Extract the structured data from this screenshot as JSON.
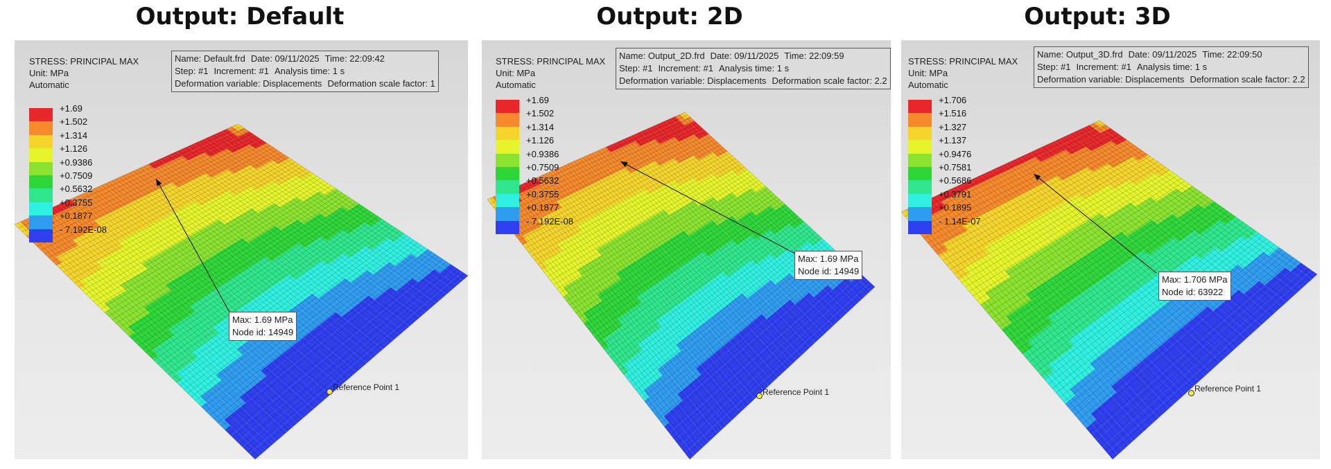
{
  "panels": [
    {
      "title": "Output: Default",
      "legend_header": [
        "STRESS: PRINCIPAL MAX",
        "Unit: MPa",
        "Automatic"
      ],
      "legend_values": [
        "+1.69",
        "+1.502",
        "+1.314",
        "+1.126",
        "+0.9386",
        "+0.7509",
        "+0.5632",
        "+0.3755",
        "+0.1877",
        "- 7.192E-08"
      ],
      "info": {
        "name": "Name: Default.frd",
        "date": "Date: 09/11/2025",
        "time": "Time: 22:09:42",
        "step": "Step: #1",
        "increment": "Increment: #1",
        "analysis_time": "Analysis time: 1 s",
        "deformation_variable": "Deformation variable: Displacements",
        "deformation_scale": "Deformation scale factor: 1"
      },
      "max_label": "Max: 1.69 MPa",
      "node_label": "Node id: 14949",
      "reference_label": "Reference Point 1"
    },
    {
      "title": "Output: 2D",
      "legend_header": [
        "STRESS: PRINCIPAL MAX",
        "Unit: MPa",
        "Automatic"
      ],
      "legend_values": [
        "+1.69",
        "+1.502",
        "+1.314",
        "+1.126",
        "+0.9386",
        "+0.7509",
        "+0.5632",
        "+0.3755",
        "+0.1877",
        "- 7.192E-08"
      ],
      "info": {
        "name": "Name: Output_2D.frd",
        "date": "Date: 09/11/2025",
        "time": "Time: 22:09:59",
        "step": "Step: #1",
        "increment": "Increment: #1",
        "analysis_time": "Analysis time: 1 s",
        "deformation_variable": "Deformation variable: Displacements",
        "deformation_scale": "Deformation scale factor: 2.2"
      },
      "max_label": "Max: 1.69 MPa",
      "node_label": "Node id: 14949",
      "reference_label": "Reference Point 1"
    },
    {
      "title": "Output: 3D",
      "legend_header": [
        "STRESS: PRINCIPAL MAX",
        "Unit: MPa",
        "Automatic"
      ],
      "legend_values": [
        "+1.706",
        "+1.516",
        "+1.327",
        "+1.137",
        "+0.9476",
        "+0.7581",
        "+0.5686",
        "+0.3791",
        "+0.1895",
        "- 1.14E-07"
      ],
      "info": {
        "name": "Name: Output_3D.frd",
        "date": "Date: 09/11/2025",
        "time": "Time: 22:09:50",
        "step": "Step: #1",
        "increment": "Increment: #1",
        "analysis_time": "Analysis time: 1 s",
        "deformation_variable": "Deformation variable: Displacements",
        "deformation_scale": "Deformation scale factor: 2.2"
      },
      "max_label": "Max: 1.706 MPa",
      "node_label": "Node id: 63922",
      "reference_label": "Reference Point 1"
    }
  ],
  "colors": {
    "scale": [
      "#e8272b",
      "#f5892b",
      "#f5d52b",
      "#e6f52b",
      "#8be22f",
      "#2fd63a",
      "#2fe68c",
      "#2ff0e0",
      "#2f9cf0",
      "#2f3ff0"
    ]
  }
}
